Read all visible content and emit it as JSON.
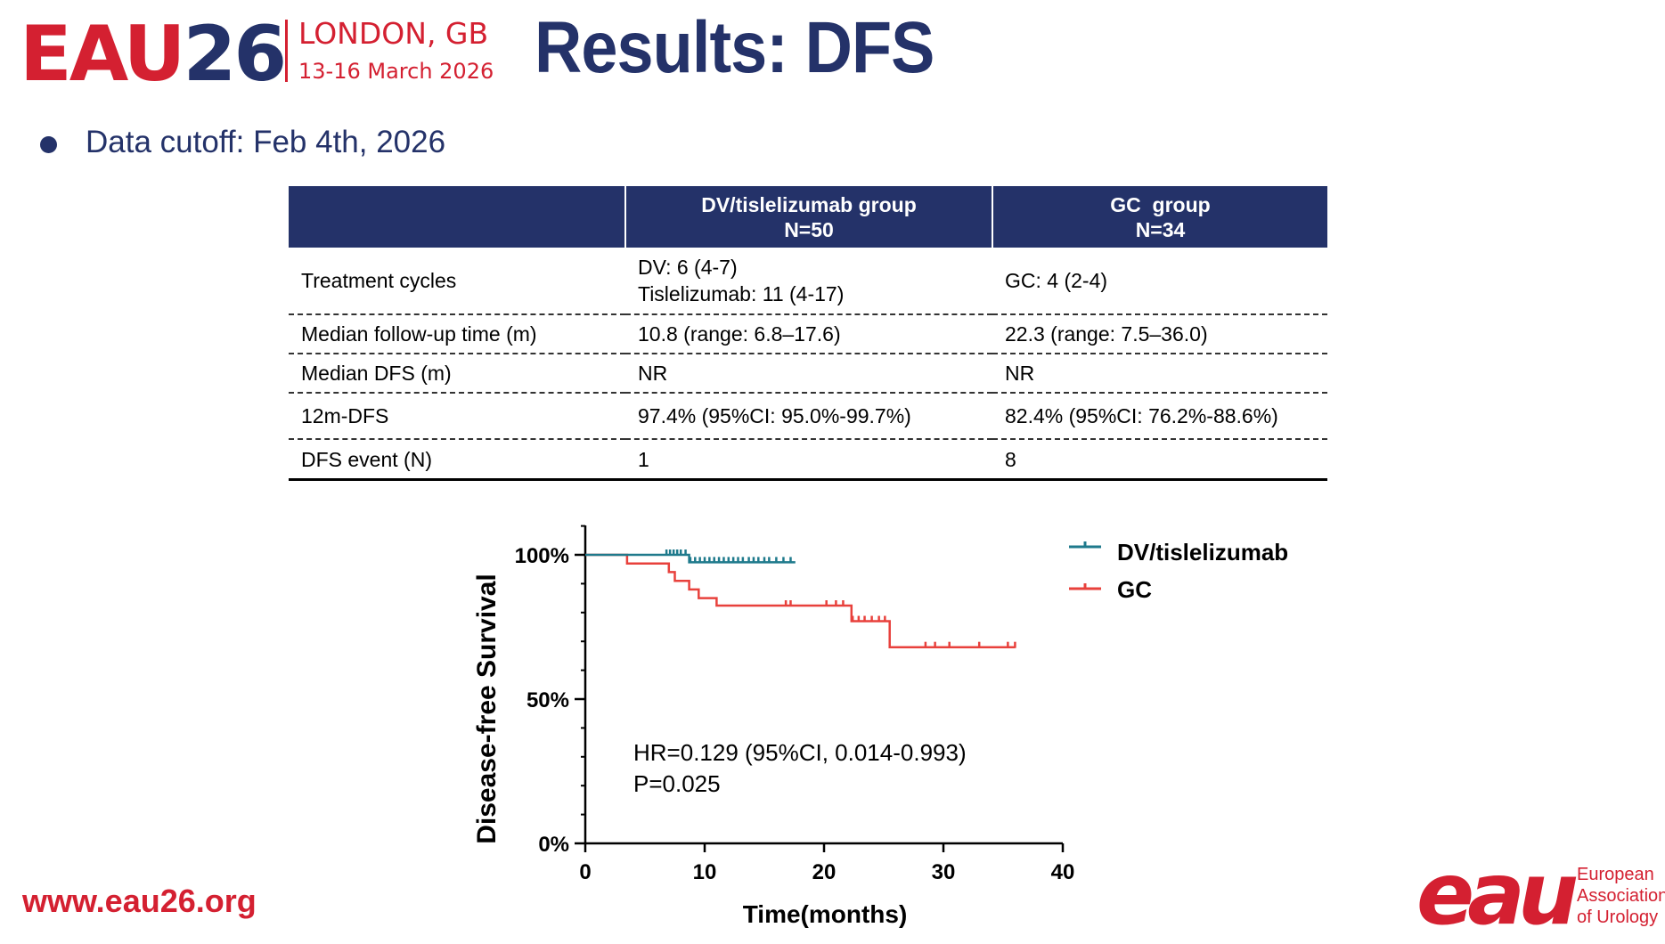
{
  "header": {
    "logo": {
      "part1": "EAU",
      "part2": "26",
      "city": "LONDON, GB",
      "dates": "13-16 March 2026"
    },
    "title": "Results: DFS"
  },
  "bullet": "Data cutoff: Feb 4th, 2026",
  "table": {
    "columns": [
      "",
      "DV/tislelizumab group",
      "N=50",
      "GC  group",
      "N=34"
    ],
    "rows": [
      {
        "label": "Treatment cycles",
        "dv_line1": "DV: 6 (4-7)",
        "dv_line2": "Tislelizumab: 11 (4-17)",
        "gc": "GC: 4 (2-4)"
      },
      {
        "label": "Median follow-up time (m)",
        "dv": "10.8 (range: 6.8–17.6)",
        "gc": "22.3 (range: 7.5–36.0)"
      },
      {
        "label": "Median DFS (m)",
        "dv": "NR",
        "gc": "NR"
      },
      {
        "label": "12m-DFS",
        "dv": "97.4% (95%CI: 95.0%-99.7%)",
        "gc": "82.4% (95%CI: 76.2%-88.6%)"
      },
      {
        "label": "DFS event (N)",
        "dv": "1",
        "gc": "8"
      }
    ]
  },
  "chart_data": {
    "type": "line",
    "subtype": "kaplan-meier step",
    "xlabel": "Time(months)",
    "ylabel": "Disease-free Survival",
    "xlim": [
      0,
      40
    ],
    "ylim": [
      0,
      100
    ],
    "xticks": [
      0,
      10,
      20,
      30,
      40
    ],
    "yticks": [
      0,
      50,
      100
    ],
    "ytick_labels": [
      "0%",
      "50%",
      "100%"
    ],
    "legend_position": "top-right",
    "series": [
      {
        "name": "DV/tislelizumab",
        "color": "#1f7a8c",
        "steps": [
          [
            0,
            100
          ],
          [
            8.7,
            100
          ],
          [
            8.7,
            97.4
          ],
          [
            17.6,
            97.4
          ]
        ],
        "censored": [
          6.8,
          7.1,
          7.4,
          7.7,
          8.0,
          8.4,
          8.8,
          9.2,
          9.6,
          10.0,
          10.4,
          10.8,
          11.2,
          11.6,
          12.0,
          12.4,
          12.8,
          13.2,
          13.7,
          14.1,
          14.5,
          15.0,
          15.4,
          16.0,
          16.6,
          17.2
        ]
      },
      {
        "name": "GC",
        "color": "#e8413c",
        "steps": [
          [
            0,
            100
          ],
          [
            3.5,
            100
          ],
          [
            3.5,
            97
          ],
          [
            7.0,
            97
          ],
          [
            7.0,
            94
          ],
          [
            7.5,
            94
          ],
          [
            7.5,
            91
          ],
          [
            8.7,
            91
          ],
          [
            8.7,
            88
          ],
          [
            9.5,
            88
          ],
          [
            9.5,
            85
          ],
          [
            11.0,
            85
          ],
          [
            11.0,
            82.4
          ],
          [
            22.3,
            82.4
          ],
          [
            22.3,
            77
          ],
          [
            25.5,
            77
          ],
          [
            25.5,
            68
          ],
          [
            36.0,
            68
          ]
        ],
        "censored": [
          16.8,
          17.2,
          20.2,
          21.0,
          21.6,
          22.4,
          22.9,
          23.4,
          24.0,
          24.6,
          25.1,
          28.5,
          29.3,
          30.5,
          33.0,
          35.4,
          36.0
        ]
      }
    ],
    "annotations": [
      "HR=0.129 (95%CI, 0.014-0.993)",
      "P=0.025"
    ]
  },
  "footer": {
    "url": "www.eau26.org",
    "brand_mark": "eau",
    "brand_lines": [
      "European",
      "Association",
      "of Urology"
    ]
  }
}
